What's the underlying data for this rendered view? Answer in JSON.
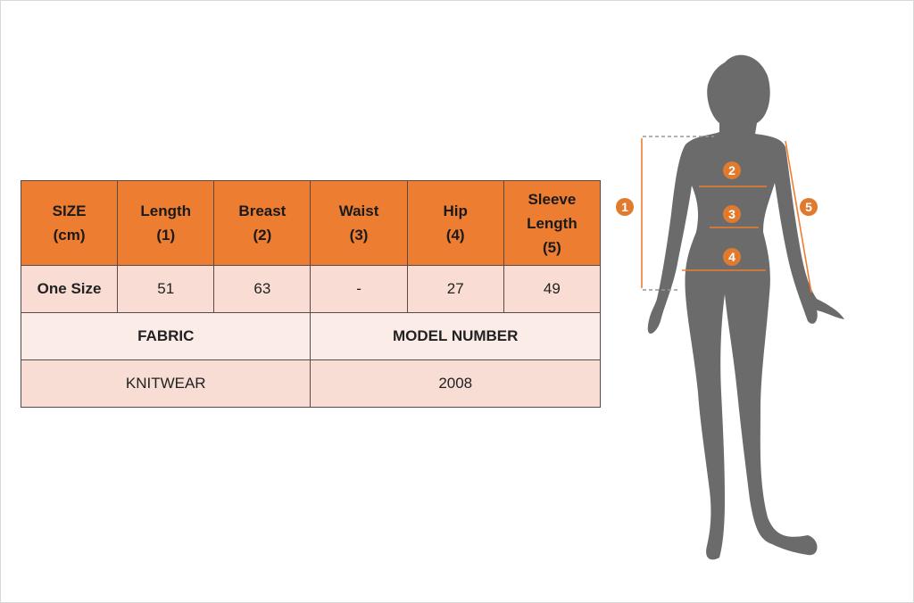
{
  "table": {
    "headers": [
      "SIZE\n(cm)",
      "Length\n(1)",
      "Breast\n(2)",
      "Waist\n(3)",
      "Hip\n(4)",
      "Sleeve\nLength\n(5)"
    ],
    "rows": [
      [
        "One Size",
        "51",
        "63",
        "-",
        "27",
        "49"
      ]
    ],
    "fabric_label": "FABRIC",
    "model_number_label": "MODEL NUMBER",
    "fabric_value": "KNITWEAR",
    "model_number_value": "2008"
  },
  "figure": {
    "markers": [
      "1",
      "2",
      "3",
      "4",
      "5"
    ],
    "accent_color": "#ED7D31",
    "silhouette_color": "#6b6b6b"
  }
}
